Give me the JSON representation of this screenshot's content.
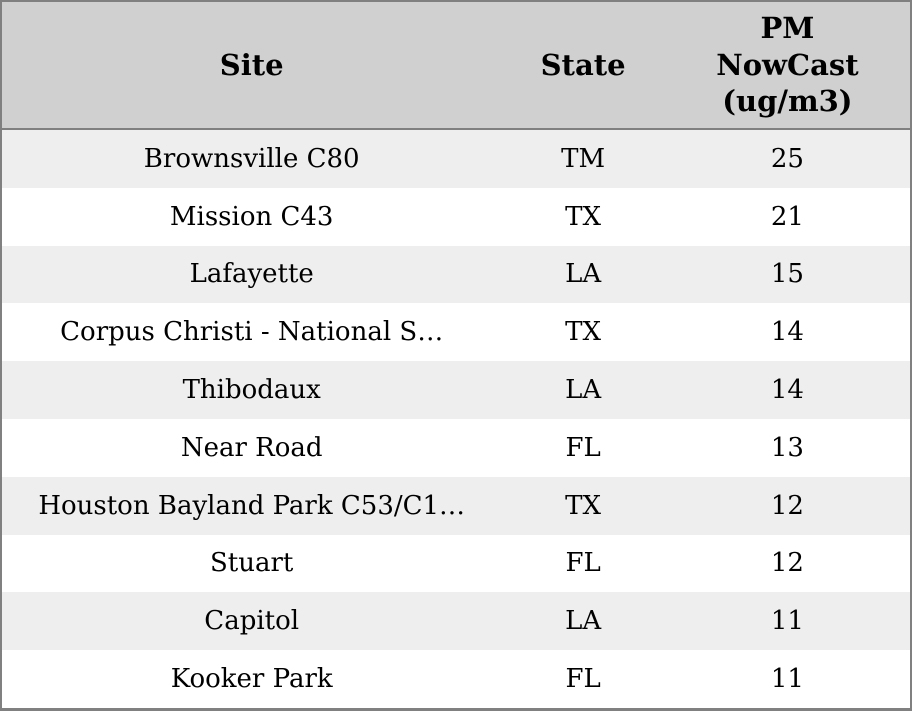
{
  "table": {
    "columns": [
      {
        "id": "site",
        "label": "Site"
      },
      {
        "id": "state",
        "label": "State"
      },
      {
        "id": "value",
        "label": "PM\nNowCast\n(ug/m3)"
      }
    ],
    "rows": [
      {
        "site": "Brownsville C80",
        "state": "TM",
        "value": "25"
      },
      {
        "site": "Mission C43",
        "state": "TX",
        "value": "21"
      },
      {
        "site": "Lafayette",
        "state": "LA",
        "value": "15"
      },
      {
        "site": "Corpus Christi - National S…",
        "state": "TX",
        "value": "14"
      },
      {
        "site": "Thibodaux",
        "state": "LA",
        "value": "14"
      },
      {
        "site": "Near Road",
        "state": "FL",
        "value": "13"
      },
      {
        "site": "Houston Bayland Park C53/C1…",
        "state": "TX",
        "value": "12"
      },
      {
        "site": "Stuart",
        "state": "FL",
        "value": "12"
      },
      {
        "site": "Capitol",
        "state": "LA",
        "value": "11"
      },
      {
        "site": "Kooker Park",
        "state": "FL",
        "value": "11"
      }
    ]
  },
  "colors": {
    "header_bg": "#d0d0d0",
    "row_stripe_bg": "#eeeeee",
    "row_bg": "#ffffff",
    "border": "#808080",
    "text": "#000000"
  }
}
